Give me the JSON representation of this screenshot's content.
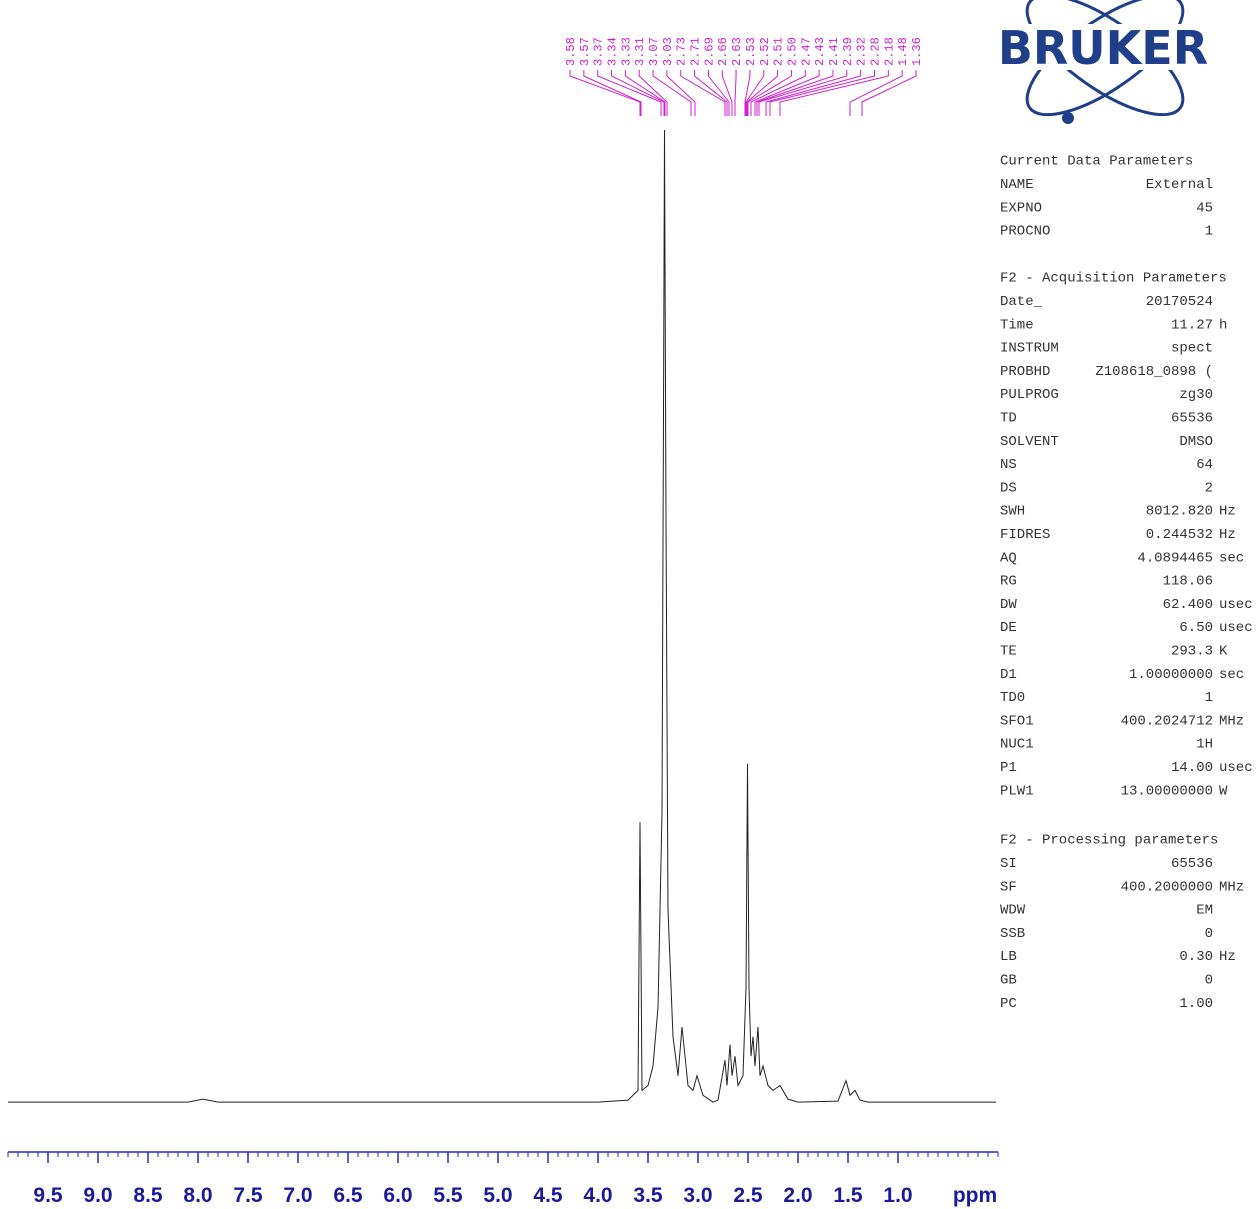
{
  "chart_data": {
    "type": "nmr",
    "x": [
      9.9,
      8.1,
      7.95,
      7.8,
      4.0,
      3.7,
      3.6,
      3.58,
      3.56,
      3.5,
      3.45,
      3.4,
      3.36,
      3.345,
      3.335,
      3.32,
      3.3,
      3.25,
      3.2,
      3.16,
      3.14,
      3.1,
      3.05,
      3.01,
      2.95,
      2.85,
      2.8,
      2.73,
      2.71,
      2.68,
      2.66,
      2.63,
      2.6,
      2.55,
      2.52,
      2.505,
      2.49,
      2.47,
      2.45,
      2.43,
      2.4,
      2.38,
      2.35,
      2.3,
      2.25,
      2.18,
      2.1,
      2.0,
      1.6,
      1.52,
      1.48,
      1.43,
      1.38,
      1.3,
      0.02
    ],
    "values": [
      0.3,
      0.3,
      0.6,
      0.3,
      0.3,
      0.5,
      1.5,
      29,
      1.5,
      2,
      4,
      10,
      30,
      71,
      100,
      60,
      20,
      7,
      3,
      8,
      6,
      2,
      1.5,
      3,
      1,
      0.3,
      0.5,
      4.6,
      2,
      6.2,
      3,
      5,
      2,
      3,
      12,
      35,
      12,
      5,
      7,
      4,
      8,
      3,
      4,
      2,
      1.5,
      2,
      0.6,
      0.3,
      0.4,
      2.5,
      1,
      1.5,
      0.5,
      0.3,
      0.3
    ],
    "color": "#222222",
    "xlim": [
      9.9,
      0
    ],
    "ylim": [
      0,
      100
    ],
    "xticks": [
      9.5,
      {
        "value": 9,
        "label": "9.0"
      },
      8.5,
      {
        "value": 8,
        "label": "8.0"
      },
      7.5,
      {
        "value": 7,
        "label": "7.0"
      },
      6.5,
      {
        "value": 6,
        "label": "6.0"
      },
      5.5,
      {
        "value": 5,
        "label": "5.0"
      },
      4.5,
      {
        "value": 4,
        "label": "4.0"
      },
      3.5,
      {
        "value": 3,
        "label": "3.0"
      },
      2.5,
      {
        "value": 2,
        "label": "2.0"
      },
      1.5,
      {
        "value": 1,
        "label": "1.0"
      }
    ],
    "xminor_step": 0.1,
    "xlabel": "ppm",
    "axis_color": "#2a2ad0",
    "peak_color": "#d020d0",
    "peaks": [
      3.58,
      3.57,
      3.37,
      3.34,
      3.33,
      3.31,
      3.07,
      3.03,
      2.73,
      2.71,
      2.69,
      2.66,
      2.63,
      2.53,
      2.52,
      2.51,
      {
        "value": 2.5,
        "label": "2.50"
      },
      2.47,
      2.43,
      2.41,
      2.39,
      2.32,
      2.28,
      2.18,
      1.48,
      1.36
    ]
  },
  "logo": "BRUKER",
  "params": [
    {
      "title": "Current Data Parameters",
      "rows": [
        [
          "NAME",
          "External"
        ],
        [
          "EXPNO",
          "45"
        ],
        [
          "PROCNO",
          "1"
        ]
      ]
    },
    {
      "title": "F2 - Acquisition Parameters",
      "rows": [
        [
          "Date_",
          "20170524"
        ],
        [
          "Time",
          "11.27",
          "h"
        ],
        [
          "INSTRUM",
          "spect"
        ],
        [
          "PROBHD",
          "Z108618_0898 ("
        ],
        [
          "PULPROG",
          "zg30"
        ],
        [
          "TD",
          "65536"
        ],
        [
          "SOLVENT",
          "DMSO"
        ],
        [
          "NS",
          "64"
        ],
        [
          "DS",
          "2"
        ],
        [
          "SWH",
          "8012.820",
          "Hz"
        ],
        [
          "FIDRES",
          "0.244532",
          "Hz"
        ],
        [
          "AQ",
          "4.0894465",
          "sec"
        ],
        [
          "RG",
          "118.06"
        ],
        [
          "DW",
          "62.400",
          "usec"
        ],
        [
          "DE",
          "6.50",
          "usec"
        ],
        [
          "TE",
          "293.3",
          "K"
        ],
        [
          "D1",
          "1.00000000",
          "sec"
        ],
        [
          "TD0",
          "1"
        ],
        [
          "SFO1",
          "400.2024712",
          "MHz"
        ],
        [
          "NUC1",
          "1H"
        ],
        [
          "P1",
          "14.00",
          "usec"
        ],
        [
          "PLW1",
          "13.00000000",
          "W"
        ]
      ]
    },
    {
      "title": "F2 - Processing parameters",
      "rows": [
        [
          "SI",
          "65536"
        ],
        [
          "SF",
          "400.2000000",
          "MHz"
        ],
        [
          "WDW",
          "EM"
        ],
        [
          "SSB",
          "0"
        ],
        [
          "LB",
          "0.30",
          "Hz"
        ],
        [
          "GB",
          "0"
        ],
        [
          "PC",
          "1.00"
        ]
      ]
    }
  ]
}
